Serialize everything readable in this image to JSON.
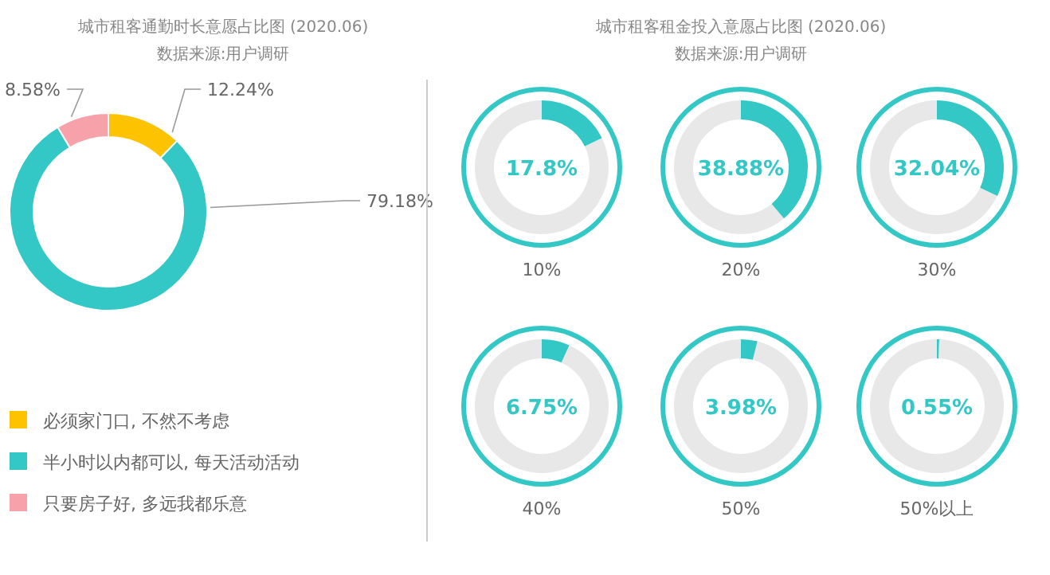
{
  "chart_data": [
    {
      "type": "donut",
      "title": "城市租客通勤时长意愿占比图 (2020.06)",
      "subtitle": "数据来源:用户调研",
      "categories": [
        "必须家门口, 不然不考虑",
        "半小时以内都可以, 每天活动活动",
        "只要房子好, 多远我都乐意"
      ],
      "values": [
        12.24,
        79.18,
        8.58
      ],
      "colors": [
        "#fdc300",
        "#33c8c6",
        "#f7a1ab"
      ],
      "value_labels": [
        "12.24%",
        "79.18%",
        "8.58%"
      ],
      "legend": "bottom"
    },
    {
      "type": "other",
      "title": "城市租客租金投入意愿占比图 (2020.06)",
      "subtitle": "数据来源:用户调研",
      "categories": [
        "10%",
        "20%",
        "30%",
        "40%",
        "50%",
        "50%以上"
      ],
      "values": [
        17.8,
        38.88,
        32.04,
        6.75,
        3.98,
        0.55
      ],
      "value_labels": [
        "17.8%",
        "38.88%",
        "32.04%",
        "6.75%",
        "3.98%",
        "0.55%"
      ],
      "color": "#33c8c6"
    }
  ]
}
